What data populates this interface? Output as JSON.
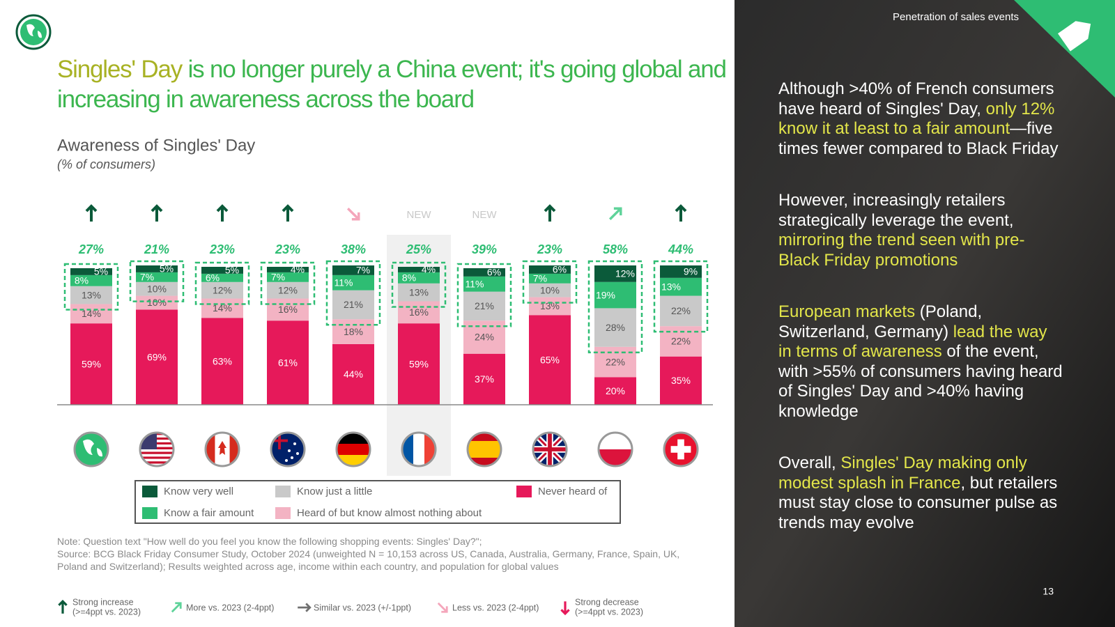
{
  "header": "Penetration of sales events",
  "title": [
    "Singles' Day",
    " is no longer purely a China event; it's going global and increasing in awareness across the board"
  ],
  "chart_data": {
    "type": "bar",
    "stacked": true,
    "title": "Awareness of Singles' Day",
    "subtitle": "(% of consumers)",
    "series": [
      {
        "name": "Never heard of",
        "color": "#e6195a",
        "values": [
          59,
          69,
          63,
          61,
          44,
          59,
          37,
          65,
          20,
          35
        ],
        "value_labels": [
          "59%",
          "69%",
          "63%",
          "61%",
          "44%",
          "59%",
          "37%",
          "65%",
          "20%",
          "35%"
        ]
      },
      {
        "name": "Heard of but know almost nothing about",
        "color": "#f3b3c3",
        "values": [
          14,
          10,
          14,
          16,
          18,
          16,
          24,
          13,
          22,
          22
        ],
        "value_labels": [
          "14%",
          "10%",
          "14%",
          "16%",
          "18%",
          "16%",
          "24%",
          "13%",
          "22%",
          "22%"
        ]
      },
      {
        "name": "Know just a little",
        "color": "#c9c9c9",
        "values": [
          13,
          10,
          12,
          12,
          21,
          13,
          21,
          10,
          28,
          22
        ],
        "value_labels": [
          "13%",
          "10%",
          "12%",
          "12%",
          "21%",
          "13%",
          "21%",
          "10%",
          "28%",
          "22%"
        ]
      },
      {
        "name": "Know a fair amount",
        "color": "#2ebd73",
        "values": [
          8,
          7,
          6,
          7,
          11,
          8,
          11,
          7,
          19,
          13
        ],
        "value_labels": [
          "8%",
          "7%",
          "6%",
          "7%",
          "11%",
          "8%",
          "11%",
          "7%",
          "19%",
          "13%"
        ]
      },
      {
        "name": "Know very well",
        "color": "#0b5a3a",
        "values": [
          5,
          5,
          5,
          4,
          7,
          4,
          6,
          6,
          12,
          9
        ],
        "value_labels": [
          "5%",
          "5%",
          "5%",
          "4%",
          "7%",
          "4%",
          "6%",
          "6%",
          "12%",
          "9%"
        ]
      }
    ],
    "totals": {
      "values": [
        27,
        21,
        23,
        23,
        38,
        25,
        39,
        23,
        58,
        44
      ],
      "value_labels": [
        "27%",
        "21%",
        "23%",
        "23%",
        "38%",
        "25%",
        "39%",
        "23%",
        "58%",
        "44%"
      ]
    },
    "trend": [
      0,
      0,
      0,
      0,
      3,
      null,
      null,
      0,
      1,
      0
    ],
    "new_label": "NEW",
    "highlight_index": 5,
    "trend_legend": [
      {
        "lines": [
          "Strong increase",
          "(>=4ppt vs. 2023)"
        ],
        "color": "#0b5a3a"
      },
      {
        "lines": [
          "More vs. 2023 (2-4ppt)"
        ],
        "color": "#5fd39a"
      },
      {
        "lines": [
          "Similar vs. 2023 (+/-1ppt)"
        ],
        "color": "#707070"
      },
      {
        "lines": [
          "Less vs. 2023 (2-4ppt)"
        ],
        "color": "#f4a6bb"
      },
      {
        "lines": [
          "Strong decrease",
          "(>=4ppt vs. 2023)"
        ],
        "color": "#e6195a"
      }
    ]
  },
  "note": "Note: Question text \"How well do you feel you know the following shopping events: Singles' Day?\";",
  "source": "Source: BCG Black Friday Consumer Study, October 2024 (unweighted N = 10,153 across US, Canada, Australia, Germany, France, Spain, UK, Poland and Switzerland); Results weighted across age, income within each country, and population for global values",
  "paragraphs": [
    [
      {
        "text": "Although >40% of French consumers have heard of Singles' Day, ",
        "em": false
      },
      {
        "text": "only 12% know it at least to a fair amount",
        "em": true
      },
      {
        "text": "—five times fewer compared to Black Friday",
        "em": false
      }
    ],
    [
      {
        "text": "However, increasingly retailers strategically leverage the event, ",
        "em": false
      },
      {
        "text": "mirroring the trend seen with pre-Black Friday promotions",
        "em": true
      }
    ],
    [
      {
        "text": "European markets",
        "em": true
      },
      {
        "text": " (Poland, Switzerland, Germany) ",
        "em": false
      },
      {
        "text": "lead the way in terms of awareness",
        "em": true
      },
      {
        "text": " of the event, with >55% of consumers having heard of Singles' Day and >40% having knowledge",
        "em": false
      }
    ],
    [
      {
        "text": "Overall, ",
        "em": false
      },
      {
        "text": "Singles' Day making only modest splash in France",
        "em": true
      },
      {
        "text": ", but retailers must stay close to consumer pulse as trends may evolve",
        "em": false
      }
    ]
  ],
  "page_number": "13"
}
